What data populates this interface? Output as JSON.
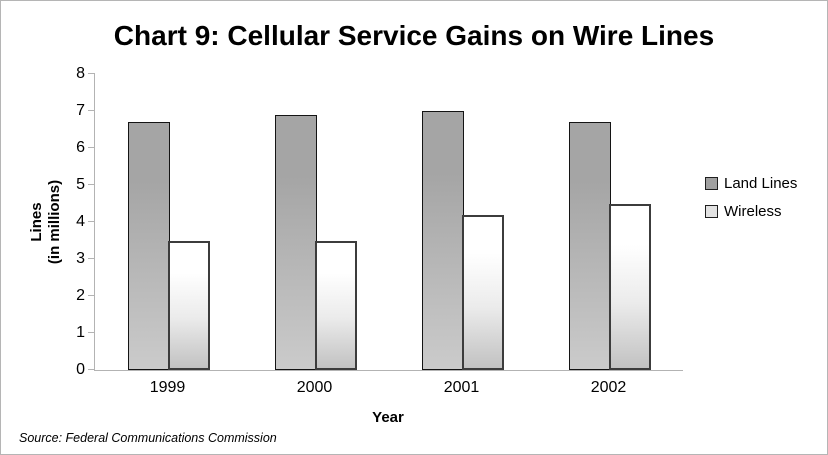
{
  "title": "Chart 9: Cellular Service Gains on Wire Lines",
  "source_note": "Source: Federal Communications Commission",
  "x_axis": {
    "title": "Year"
  },
  "y_axis": {
    "title_line1": "Lines",
    "title_line2": "(in millions)"
  },
  "colors": {
    "frame_border": "#b5b5b5",
    "axis_line": "#b3b3b3",
    "text": "#000000"
  },
  "chart_data": {
    "type": "bar",
    "title": "Chart 9: Cellular Service Gains on Wire Lines",
    "categories": [
      "1999",
      "2000",
      "2001",
      "2002"
    ],
    "series": [
      {
        "name": "Land Lines",
        "values": [
          6.7,
          6.9,
          7.0,
          6.7
        ],
        "fill_top": "#a5a5a5",
        "fill_mid": "#b7b7b7",
        "fill_bottom": "#cbcbcb",
        "border_color": "#141414",
        "border_width": 1,
        "swatch_color": "#a0a0a0"
      },
      {
        "name": "Wireless",
        "values": [
          3.5,
          3.5,
          4.2,
          4.5
        ],
        "fill_top": "#ffffff",
        "fill_mid": "#ebebeb",
        "fill_bottom": "#c2c2c2",
        "border_color": "#3c3c3c",
        "border_width": 2,
        "swatch_color": "#e2e2e2"
      }
    ],
    "xlabel": "Year",
    "ylabel": "Lines (in millions)",
    "ylim": [
      0,
      8
    ],
    "ytick_step": 1,
    "grid": false,
    "legend_position": "right"
  }
}
